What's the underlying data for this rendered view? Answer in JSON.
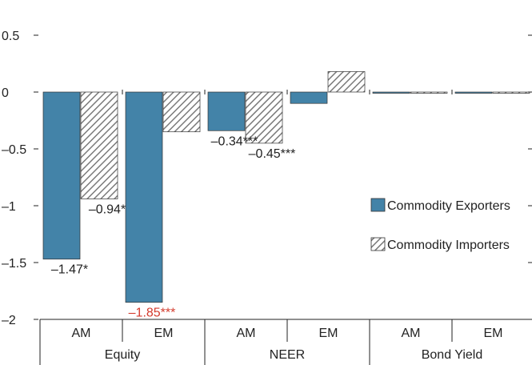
{
  "chart_data": {
    "type": "bar",
    "groups": [
      {
        "label": "Equity",
        "categories": [
          "AM",
          "EM"
        ]
      },
      {
        "label": "NEER",
        "categories": [
          "AM",
          "EM"
        ]
      },
      {
        "label": "Bond Yield",
        "categories": [
          "AM",
          "EM"
        ]
      }
    ],
    "series": [
      {
        "name": "Commodity Exporters",
        "color": "#4383a8",
        "pattern": "solid",
        "values": [
          -1.47,
          -1.85,
          -0.34,
          -0.1,
          0.0,
          0.0
        ],
        "labels": [
          "–1.47*",
          "–1.85***",
          "–0.34***",
          "",
          "",
          ""
        ]
      },
      {
        "name": "Commodity Importers",
        "color": "#888888",
        "pattern": "diagonal-hatch",
        "values": [
          -0.94,
          -0.35,
          -0.45,
          0.18,
          0.0,
          0.0
        ],
        "labels": [
          "–0.94*",
          "",
          "–0.45***",
          "",
          "",
          ""
        ]
      }
    ],
    "highlight_label_color": "#d33a2c",
    "highlighted_labels": [
      {
        "series": 0,
        "index": 1
      }
    ],
    "y_ticks": [
      {
        "value": 0.5,
        "label": "0.5"
      },
      {
        "value": 0,
        "label": "0"
      },
      {
        "value": -0.5,
        "label": "–0.5"
      },
      {
        "value": -1,
        "label": "–1"
      },
      {
        "value": -1.5,
        "label": "–1.5"
      },
      {
        "value": -2,
        "label": "–2"
      }
    ],
    "ylim": [
      -2,
      0.5
    ],
    "grid": false,
    "legend_position": "right-middle"
  }
}
